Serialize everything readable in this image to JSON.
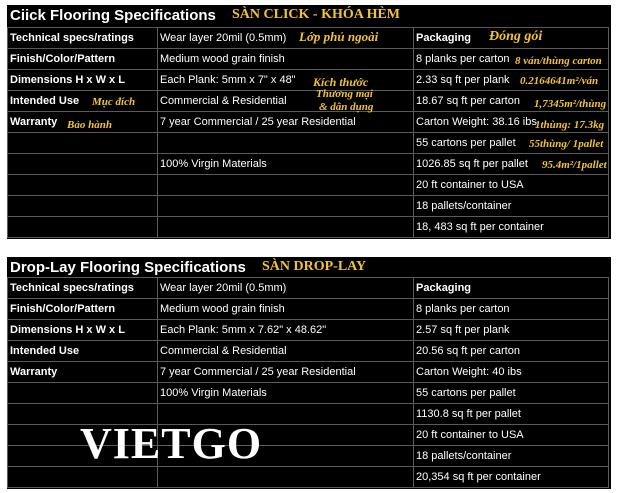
{
  "section1": {
    "title": "Ciick Flooring Specifications",
    "title_vi": "SÀN CLICK - KHÓA HÈM",
    "rows": [
      [
        "Technical specs/ratings",
        "Wear layer 20mil (0.5mm)",
        "Packaging"
      ],
      [
        "Finish/Color/Pattern",
        "Medium wood grain finish",
        "8 planks per carton"
      ],
      [
        "Dimensions H x W x L",
        "Each Plank: 5mm x 7\" x 48\"",
        "2.33 sq ft per plank"
      ],
      [
        "Intended Use",
        "Commercial & Residential",
        "18.67 sq ft per carton"
      ],
      [
        "Warranty",
        "7 year Commercial / 25 year Residential",
        "Carton Weight: 38.16 ibs"
      ],
      [
        "",
        "",
        "55 cartons per pallet"
      ],
      [
        "",
        "100% Virgin Materials",
        "1026.85 sq ft per pallet"
      ],
      [
        "",
        "",
        "20 ft container to USA"
      ],
      [
        "",
        "",
        "18 pallets/container"
      ],
      [
        "",
        "",
        "18, 483 sq ft per container"
      ]
    ],
    "annotations": {
      "wear": "Lớp phủ ngoài",
      "packaging": "Đóng gói",
      "dimensions": "Kích thước",
      "usage_1": "Thương mại",
      "usage_2": "& dân dụng",
      "intended_use": "Mục đích",
      "warranty": "Bảo hành",
      "planks": "8 ván/thùng carton",
      "per_plank": "0.2164641m²/ván",
      "per_carton": "1,7345m²/thùng",
      "weight": "1thùng: 17.3kg",
      "pallet": "55thùng/ 1pallet",
      "per_pallet": "95.4m²/1pallet"
    }
  },
  "section2": {
    "title": "Drop-Lay Flooring Specifications",
    "title_vi": "SÀN DROP-LAY",
    "rows": [
      [
        "Technical specs/ratings",
        "Wear layer 20mil (0.5mm)",
        "Packaging"
      ],
      [
        "Finish/Color/Pattern",
        "Medium wood grain finish",
        "8 planks per carton"
      ],
      [
        "Dimensions H x W x L",
        "Each Plank: 5mm x 7.62\" x 48.62\"",
        "2.57 sq ft per plank"
      ],
      [
        "Intended Use",
        "Commercial & Residential",
        "20.56 sq ft per carton"
      ],
      [
        "Warranty",
        "7 year Commercial / 25 year Residential",
        "Carton Weight: 40 ibs"
      ],
      [
        "",
        "100% Virgin Materials",
        "55 cartons per pallet"
      ],
      [
        "",
        "",
        "1130.8 sq ft per pallet"
      ],
      [
        "",
        "",
        "20 ft container to USA"
      ],
      [
        "",
        "",
        "18 pallets/container"
      ],
      [
        "",
        "",
        "20,354 sq ft per container"
      ]
    ]
  },
  "watermark": "VIETGO",
  "colors": {
    "background": "#000000",
    "annotation": "#f2c431",
    "text": "#ffffff"
  }
}
